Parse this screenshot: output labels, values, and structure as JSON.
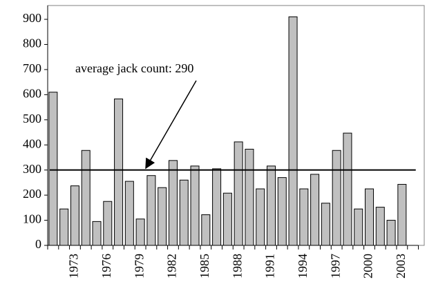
{
  "chart_data": {
    "type": "bar",
    "categories": [
      null,
      null,
      "1973",
      null,
      null,
      "1976",
      null,
      null,
      "1979",
      null,
      null,
      "1982",
      null,
      null,
      "1985",
      null,
      null,
      "1988",
      null,
      null,
      "1991",
      null,
      null,
      "1994",
      null,
      null,
      "1997",
      null,
      null,
      "2000",
      null,
      null,
      "2003"
    ],
    "values": [
      610,
      145,
      237,
      378,
      95,
      175,
      583,
      255,
      105,
      278,
      230,
      338,
      260,
      316,
      122,
      305,
      208,
      412,
      383,
      225,
      316,
      270,
      910,
      225,
      283,
      168,
      378,
      447,
      145,
      225,
      152,
      100,
      243
    ],
    "color": "#c0c0c0",
    "ylim": [
      0,
      955
    ],
    "yticks": [
      0,
      100,
      200,
      300,
      400,
      500,
      600,
      700,
      800,
      900
    ],
    "reference_line": 300,
    "annotation": "average jack count: 290"
  }
}
